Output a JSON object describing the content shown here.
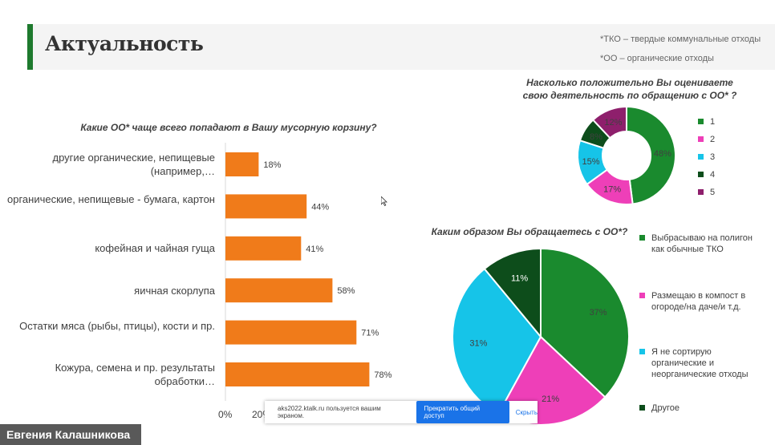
{
  "slide": {
    "title": "Актуальность",
    "notes": [
      "*ТКО – твердые коммунальные отходы",
      "*ОО – органические отходы"
    ]
  },
  "colors": {
    "bar": "#f07b1a",
    "accent": "#1e7a2e",
    "series": [
      "#1a8a2e",
      "#ee3fb8",
      "#16c4e8",
      "#0d4d1b",
      "#8e1f6c"
    ]
  },
  "chart_data": [
    {
      "type": "bar",
      "orientation": "horizontal",
      "title": "Какие ОО* чаще всего попадают в Вашу мусорную корзину?",
      "categories": [
        "другие органические, непищевые (например,…",
        "органические, непищевые - бумага, картон",
        "кофейная и чайная гуща",
        "яичная скорлупа",
        "Остатки мяса (рыбы, птицы), кости и пр.",
        "Кожура, семена и пр. результаты обработки…"
      ],
      "values": [
        18,
        44,
        41,
        58,
        71,
        78
      ],
      "value_labels": [
        "18%",
        "44%",
        "41%",
        "58%",
        "71%",
        "78%"
      ],
      "x_ticks": [
        "0%",
        "20%"
      ],
      "xlim": [
        0,
        100
      ]
    },
    {
      "type": "pie",
      "variant": "donut",
      "title": "Насколько положительно Вы оцениваете свою деятельность по обращению с ОО* ?",
      "categories": [
        "1",
        "2",
        "3",
        "4",
        "5"
      ],
      "values": [
        48,
        17,
        15,
        8,
        12
      ],
      "value_labels": [
        "48%",
        "17%",
        "15%",
        "8%",
        "12%"
      ],
      "legend": "right"
    },
    {
      "type": "pie",
      "title": "Каким образом Вы обращаетесь с ОО*?",
      "categories": [
        "Выбрасываю на полигон как обычные ТКО",
        "Размещаю в компост в огороде/на даче/и т.д.",
        "Я не сортирую органические и неорганические отходы",
        "Другое"
      ],
      "values": [
        37,
        21,
        31,
        11
      ],
      "value_labels": [
        "37%",
        "21%",
        "31%",
        "11%"
      ],
      "legend": "right"
    }
  ],
  "share_bar": {
    "message": "aks2022.ktalk.ru пользуется вашим экраном.",
    "stop_label": "Прекратить общий доступ",
    "hide_label": "Скрыть"
  },
  "participant": {
    "name": "Евгения Калашникова"
  }
}
